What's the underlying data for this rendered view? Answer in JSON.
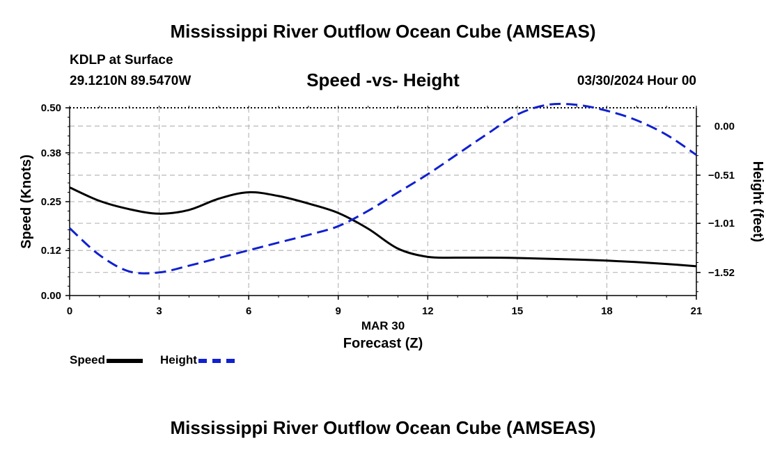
{
  "title": "Mississippi River Outflow Ocean Cube (AMSEAS)",
  "title_repeat": "Mississippi River Outflow Ocean Cube (AMSEAS)",
  "station": "KDLP at Surface",
  "location": "29.1210N  89.5470W",
  "subtitle": "Speed -vs- Height",
  "datestamp": "03/30/2024 Hour 00",
  "legend": {
    "speed_label": "Speed",
    "height_label": "Height"
  },
  "colors": {
    "speed": "#000000",
    "height": "#1020d0",
    "grid": "#bdbdbd"
  },
  "chart_data": {
    "type": "line",
    "title": "Speed -vs- Height",
    "xlabel": "Forecast (Z)",
    "xdate_label": "MAR 30",
    "ylabel": "Speed (Knots)",
    "y2label": "Height (feet)",
    "xlim": [
      0,
      21
    ],
    "ylim": [
      0,
      0.5
    ],
    "y2lim": [
      -1.76,
      0.19
    ],
    "x_ticks": [
      "0",
      "3",
      "6",
      "9",
      "12",
      "15",
      "18",
      "21"
    ],
    "y_ticks": [
      "0.00",
      "0.12",
      "0.25",
      "0.38",
      "0.50"
    ],
    "y2_ticks": [
      "0.00",
      "−0.51",
      "−1.01",
      "−1.52"
    ],
    "y2_tick_values": [
      0.0,
      -0.51,
      -1.01,
      -1.52
    ],
    "series": [
      {
        "name": "Speed",
        "axis": "left",
        "style": "solid",
        "x": [
          0,
          1,
          2,
          3,
          4,
          5,
          6,
          7,
          8,
          9,
          10,
          11,
          12,
          13,
          14,
          15,
          16,
          17,
          18,
          19,
          20,
          21
        ],
        "values": [
          0.288,
          0.252,
          0.23,
          0.218,
          0.228,
          0.258,
          0.275,
          0.265,
          0.245,
          0.22,
          0.178,
          0.125,
          0.103,
          0.101,
          0.101,
          0.1,
          0.098,
          0.096,
          0.093,
          0.089,
          0.084,
          0.078
        ]
      },
      {
        "name": "Height",
        "axis": "right",
        "style": "dashed",
        "x": [
          0,
          1,
          2,
          3,
          4,
          5,
          6,
          7,
          8,
          9,
          10,
          11,
          12,
          13,
          14,
          15,
          16,
          17,
          18,
          19,
          20,
          21
        ],
        "values": [
          -1.06,
          -1.34,
          -1.51,
          -1.52,
          -1.45,
          -1.37,
          -1.29,
          -1.21,
          -1.13,
          -1.04,
          -0.88,
          -0.69,
          -0.5,
          -0.29,
          -0.08,
          0.12,
          0.22,
          0.22,
          0.16,
          0.06,
          -0.09,
          -0.3
        ]
      }
    ]
  }
}
